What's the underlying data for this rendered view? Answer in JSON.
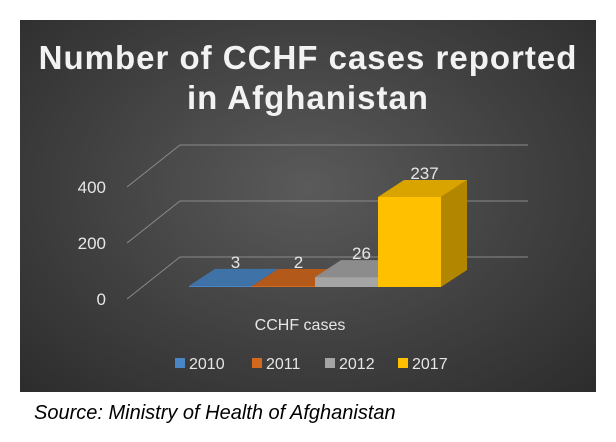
{
  "chart_data": {
    "type": "bar",
    "title": "Number of CCHF cases reported in Afghanistan",
    "categories": [
      "CCHF cases"
    ],
    "series": [
      {
        "name": "2010",
        "values": [
          3
        ],
        "color": "#4a86c5"
      },
      {
        "name": "2011",
        "values": [
          2
        ],
        "color": "#d2691e"
      },
      {
        "name": "2012",
        "values": [
          26
        ],
        "color": "#a5a5a5"
      },
      {
        "name": "2017",
        "values": [
          237
        ],
        "color": "#ffc000"
      }
    ],
    "yticks": [
      "0",
      "200",
      "400"
    ],
    "ylim": [
      0,
      400
    ],
    "grid": true,
    "legend": "bottom",
    "xlabel": "",
    "ylabel": ""
  },
  "source": "Source: Ministry of Health of Afghanistan"
}
